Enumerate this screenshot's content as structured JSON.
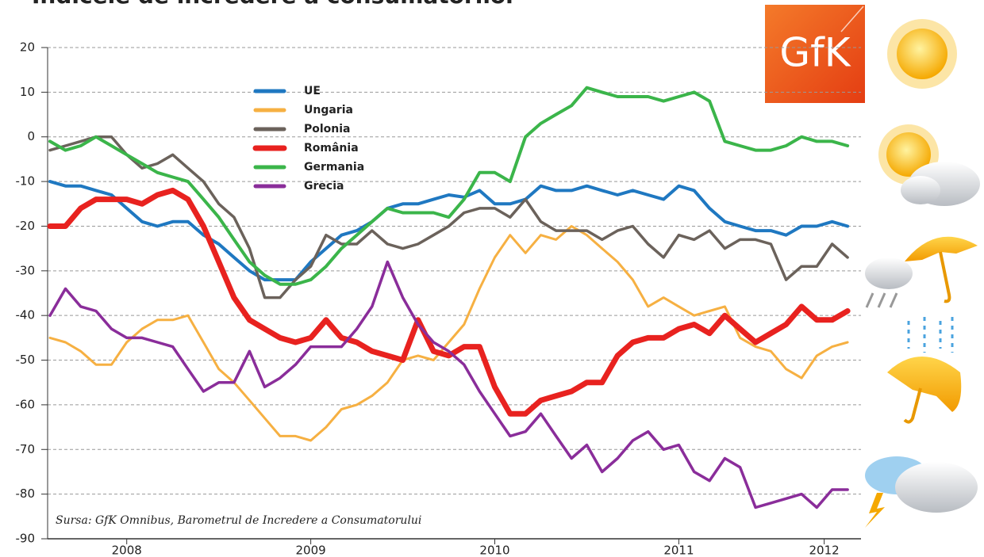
{
  "chart_data": {
    "type": "line",
    "title": "Indicele de încredere a consumatorilor",
    "source": "Sursa: GfK Omnibus, Barometrul de Incredere a Consumatorului",
    "logo": "GfK",
    "x": [
      2008.083,
      2008.167,
      2008.25,
      2008.333,
      2008.417,
      2008.5,
      2008.583,
      2008.667,
      2008.75,
      2008.833,
      2008.917,
      2009,
      2009.083,
      2009.167,
      2009.25,
      2009.333,
      2009.417,
      2009.5,
      2009.583,
      2009.667,
      2009.75,
      2009.833,
      2009.917,
      2010,
      2010.083,
      2010.167,
      2010.25,
      2010.333,
      2010.417,
      2010.5,
      2010.583,
      2010.667,
      2010.75,
      2010.833,
      2010.917,
      2011,
      2011.083,
      2011.167,
      2011.25,
      2011.333,
      2011.417,
      2011.5,
      2011.583,
      2011.667,
      2011.75,
      2011.833,
      2011.917,
      2012,
      2012.083,
      2012.167,
      2012.25,
      2012.333,
      2012.417
    ],
    "series": [
      {
        "name": "UE",
        "color": "#1f78c1",
        "line_width": 4,
        "values": [
          -10,
          -11,
          -11,
          -12,
          -13,
          -16,
          -19,
          -20,
          -19,
          -19,
          -22,
          -24,
          -27,
          -30,
          -32,
          -32,
          -32,
          -28,
          -25,
          -22,
          -21,
          -19,
          -16,
          -15,
          -15,
          -14,
          -13,
          -13.5,
          -12,
          -15,
          -15,
          -14,
          -11,
          -12,
          -12,
          -11,
          -12,
          -13,
          -12,
          -13,
          -14,
          -11,
          -12,
          -16,
          -19,
          -20,
          -21,
          -21,
          -22,
          -20,
          -20,
          -19,
          -20
        ]
      },
      {
        "name": "Ungaria",
        "color": "#f6b042",
        "line_width": 3,
        "values": [
          -45,
          -46,
          -48,
          -51,
          -51,
          -46,
          -43,
          -41,
          -41,
          -40,
          -46,
          -52,
          -55,
          -59,
          -63,
          -67,
          -67,
          -68,
          -65,
          -61,
          -60,
          -58,
          -55,
          -50,
          -49,
          -50,
          -46,
          -42,
          -34,
          -27,
          -22,
          -26,
          -22,
          -23,
          -20,
          -22,
          -25,
          -28,
          -32,
          -38,
          -36,
          -38,
          -40,
          -39,
          -38,
          -45,
          -47,
          -48,
          -52,
          -54,
          -49,
          -47,
          -46
        ]
      },
      {
        "name": "Polonia",
        "color": "#6b625b",
        "line_width": 3.5,
        "values": [
          -3,
          -2,
          -1,
          0,
          0,
          -4,
          -7,
          -6,
          -4,
          -7,
          -10,
          -15,
          -18,
          -25,
          -36,
          -36,
          -32,
          -29,
          -22,
          -24,
          -24,
          -21,
          -24,
          -25,
          -24,
          -22,
          -20,
          -17,
          -16,
          -16,
          -18,
          -14,
          -19,
          -21,
          -21,
          -21,
          -23,
          -21,
          -20,
          -24,
          -27,
          -22,
          -23,
          -21,
          -25,
          -23,
          -23,
          -24,
          -32,
          -29,
          -29,
          -24,
          -27
        ]
      },
      {
        "name": "România",
        "color": "#e8221f",
        "line_width": 7,
        "values": [
          -20,
          -20,
          -16,
          -14,
          -14,
          -14,
          -15,
          -13,
          -12,
          -14,
          -20,
          -28,
          -36,
          -41,
          -43,
          -45,
          -46,
          -45,
          -41,
          -45,
          -46,
          -48,
          -49,
          -50,
          -41,
          -48,
          -49,
          -47,
          -47,
          -56,
          -62,
          -62,
          -59,
          -58,
          -57,
          -55,
          -55,
          -49,
          -46,
          -45,
          -45,
          -43,
          -42,
          -44,
          -40,
          -43,
          -46,
          -44,
          -42,
          -38,
          -41,
          -41,
          -39
        ]
      },
      {
        "name": "Germania",
        "color": "#3bb54a",
        "line_width": 4,
        "values": [
          -1,
          -3,
          -2,
          0,
          -2,
          -4,
          -6,
          -8,
          -9,
          -10,
          -14,
          -18,
          -23,
          -28,
          -31,
          -33,
          -33,
          -32,
          -29,
          -25,
          -22,
          -19,
          -16,
          -17,
          -17,
          -17,
          -18,
          -14,
          -8,
          -8,
          -10,
          0,
          3,
          5,
          7,
          11,
          10,
          9,
          9,
          9,
          8,
          9,
          10,
          8,
          -1,
          -2,
          -3,
          -3,
          -2,
          0,
          -1,
          -1,
          -2
        ]
      },
      {
        "name": "Grecia",
        "color": "#8a2d9a",
        "line_width": 3.5,
        "values": [
          -40,
          -34,
          -38,
          -39,
          -43,
          -45,
          -45,
          -46,
          -47,
          -52,
          -57,
          -55,
          -55,
          -48,
          -56,
          -54,
          -51,
          -47,
          -47,
          -47,
          -43,
          -38,
          -28,
          -36,
          -42,
          -46,
          -48,
          -51,
          -57,
          -62,
          -67,
          -66,
          -62,
          -67,
          -72,
          -69,
          -75,
          -72,
          -68,
          -66,
          -70,
          -69,
          -75,
          -77,
          -72,
          -74,
          -83,
          -82,
          -81,
          -80,
          -83,
          -79,
          -79
        ]
      }
    ],
    "xlim": [
      2008.07,
      2012.49
    ],
    "xticks": [
      {
        "value": 2008.5,
        "label": "2008"
      },
      {
        "value": 2009.5,
        "label": "2009"
      },
      {
        "value": 2010.5,
        "label": "2010"
      },
      {
        "value": 2011.5,
        "label": "2011"
      },
      {
        "value": 2012.29,
        "label": "2012"
      }
    ],
    "ylim": [
      -90,
      20
    ],
    "yticks": [
      -90,
      -80,
      -70,
      -60,
      -50,
      -40,
      -30,
      -20,
      -10,
      0,
      10,
      20
    ],
    "grid": true
  }
}
